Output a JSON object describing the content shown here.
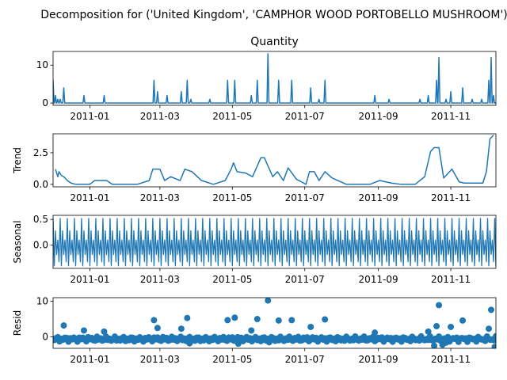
{
  "figure": {
    "suptitle": "Decomposition for ('United Kingdom', 'CAMPHOR WOOD PORTOBELLO MUSHROOM')"
  },
  "chart_data": [
    {
      "type": "line",
      "title": "Quantity",
      "ylabel": "",
      "x_range": [
        "2010-12-01",
        "2011-12-09"
      ],
      "ylim": [
        -0.6,
        13.6
      ],
      "yticks": [
        0,
        10
      ],
      "xtick_labels": [
        "2011-01",
        "2011-03",
        "2011-05",
        "2011-07",
        "2011-09",
        "2011-11"
      ],
      "xticks": [
        "2011-01-01",
        "2011-03-01",
        "2011-05-01",
        "2011-07-01",
        "2011-09-01",
        "2011-11-01"
      ],
      "color": "#1f77b4",
      "baseline": 0,
      "spikes": [
        [
          "2010-12-01",
          6
        ],
        [
          "2010-12-03",
          2
        ],
        [
          "2010-12-05",
          1
        ],
        [
          "2010-12-07",
          1
        ],
        [
          "2010-12-10",
          4
        ],
        [
          "2010-12-27",
          2
        ],
        [
          "2011-01-13",
          2
        ],
        [
          "2011-02-24",
          6
        ],
        [
          "2011-02-27",
          3
        ],
        [
          "2011-03-07",
          2
        ],
        [
          "2011-03-19",
          3
        ],
        [
          "2011-03-24",
          6
        ],
        [
          "2011-03-27",
          1
        ],
        [
          "2011-04-12",
          1
        ],
        [
          "2011-04-27",
          6
        ],
        [
          "2011-05-03",
          6
        ],
        [
          "2011-05-17",
          2
        ],
        [
          "2011-05-22",
          6
        ],
        [
          "2011-05-31",
          13
        ],
        [
          "2011-06-09",
          6
        ],
        [
          "2011-06-20",
          6
        ],
        [
          "2011-07-06",
          4
        ],
        [
          "2011-07-13",
          1
        ],
        [
          "2011-07-18",
          6
        ],
        [
          "2011-08-29",
          2
        ],
        [
          "2011-09-10",
          1
        ],
        [
          "2011-10-06",
          1
        ],
        [
          "2011-10-13",
          2
        ],
        [
          "2011-10-20",
          6
        ],
        [
          "2011-10-22",
          12
        ],
        [
          "2011-10-28",
          1
        ],
        [
          "2011-11-01",
          3
        ],
        [
          "2011-11-11",
          4
        ],
        [
          "2011-11-19",
          1
        ],
        [
          "2011-11-27",
          1
        ],
        [
          "2011-12-03",
          6
        ],
        [
          "2011-12-05",
          12
        ],
        [
          "2011-12-07",
          2
        ]
      ]
    },
    {
      "type": "line",
      "title": "",
      "ylabel": "Trend",
      "x_range": [
        "2010-12-01",
        "2011-12-09"
      ],
      "ylim": [
        -0.2,
        4.0
      ],
      "yticks": [
        0.0,
        2.5
      ],
      "ytick_labels": [
        "0.0",
        "2.5"
      ],
      "xtick_labels": [
        "2011-01",
        "2011-03",
        "2011-05",
        "2011-07",
        "2011-09",
        "2011-11"
      ],
      "xticks": [
        "2011-01-01",
        "2011-03-01",
        "2011-05-01",
        "2011-07-01",
        "2011-09-01",
        "2011-11-01"
      ],
      "color": "#1f77b4",
      "x": [
        "2010-12-03",
        "2010-12-05",
        "2010-12-06",
        "2010-12-08",
        "2010-12-10",
        "2010-12-13",
        "2010-12-16",
        "2010-12-20",
        "2011-01-01",
        "2011-01-05",
        "2011-01-15",
        "2011-01-20",
        "2011-02-10",
        "2011-02-20",
        "2011-02-23",
        "2011-03-01",
        "2011-03-05",
        "2011-03-10",
        "2011-03-18",
        "2011-03-22",
        "2011-03-28",
        "2011-04-05",
        "2011-04-15",
        "2011-04-25",
        "2011-04-30",
        "2011-05-02",
        "2011-05-05",
        "2011-05-12",
        "2011-05-18",
        "2011-05-25",
        "2011-05-28",
        "2011-06-04",
        "2011-06-08",
        "2011-06-13",
        "2011-06-17",
        "2011-06-24",
        "2011-07-02",
        "2011-07-05",
        "2011-07-09",
        "2011-07-13",
        "2011-07-18",
        "2011-07-24",
        "2011-08-05",
        "2011-08-25",
        "2011-09-02",
        "2011-09-12",
        "2011-09-20",
        "2011-10-02",
        "2011-10-10",
        "2011-10-15",
        "2011-10-18",
        "2011-10-22",
        "2011-10-26",
        "2011-10-29",
        "2011-11-02",
        "2011-11-08",
        "2011-11-12",
        "2011-11-20",
        "2011-11-28",
        "2011-12-01",
        "2011-12-04",
        "2011-12-07"
      ],
      "values": [
        1.2,
        0.6,
        1.0,
        0.7,
        0.6,
        0.3,
        0.1,
        0.0,
        0.0,
        0.3,
        0.3,
        0.0,
        0.0,
        0.3,
        1.2,
        1.2,
        0.3,
        0.6,
        0.3,
        1.2,
        1.0,
        0.3,
        0.0,
        0.3,
        1.2,
        1.7,
        1.0,
        0.9,
        0.6,
        2.1,
        2.1,
        0.6,
        1.0,
        0.3,
        1.3,
        0.4,
        0.0,
        1.0,
        1.0,
        0.3,
        1.0,
        0.5,
        0.0,
        0.0,
        0.3,
        0.1,
        0.0,
        0.0,
        0.6,
        2.6,
        2.9,
        2.9,
        0.5,
        0.8,
        1.2,
        0.2,
        0.1,
        0.1,
        0.1,
        1.0,
        3.6,
        3.9
      ]
    },
    {
      "type": "line",
      "title": "",
      "ylabel": "Seasonal",
      "x_range": [
        "2010-12-01",
        "2011-12-09"
      ],
      "ylim": [
        -0.45,
        0.58
      ],
      "yticks": [
        0.0,
        0.5
      ],
      "ytick_labels": [
        "0.0",
        "0.5"
      ],
      "xtick_labels": [
        "2011-01",
        "2011-03",
        "2011-05",
        "2011-07",
        "2011-09",
        "2011-11"
      ],
      "xticks": [
        "2011-01-01",
        "2011-03-01",
        "2011-05-01",
        "2011-07-01",
        "2011-09-01",
        "2011-11-01"
      ],
      "color": "#1f77b4",
      "period_days": 6,
      "cycle_values": [
        0.52,
        -0.4,
        0.28,
        -0.18,
        0.1,
        -0.32
      ]
    },
    {
      "type": "scatter",
      "title": "",
      "ylabel": "Resid",
      "x_range": [
        "2010-12-01",
        "2011-12-09"
      ],
      "ylim": [
        -3.2,
        11.0
      ],
      "yticks": [
        0,
        10
      ],
      "xtick_labels": [
        "2011-01",
        "2011-03",
        "2011-05",
        "2011-07",
        "2011-09",
        "2011-11"
      ],
      "xticks": [
        "2011-01-01",
        "2011-03-01",
        "2011-05-01",
        "2011-07-01",
        "2011-09-01",
        "2011-11-01"
      ],
      "color": "#1f77b4",
      "baseline": 0,
      "outliers": [
        [
          "2010-12-10",
          3.2
        ],
        [
          "2010-12-27",
          1.8
        ],
        [
          "2011-01-13",
          1.5
        ],
        [
          "2011-02-24",
          4.7
        ],
        [
          "2011-02-27",
          2.5
        ],
        [
          "2011-03-19",
          2.3
        ],
        [
          "2011-03-24",
          5.3
        ],
        [
          "2011-04-27",
          4.7
        ],
        [
          "2011-05-03",
          5.4
        ],
        [
          "2011-05-17",
          1.8
        ],
        [
          "2011-05-22",
          5.0
        ],
        [
          "2011-05-31",
          10.2
        ],
        [
          "2011-06-09",
          4.6
        ],
        [
          "2011-06-20",
          4.7
        ],
        [
          "2011-07-06",
          2.8
        ],
        [
          "2011-07-18",
          4.9
        ],
        [
          "2011-08-29",
          1.2
        ],
        [
          "2011-10-13",
          1.5
        ],
        [
          "2011-10-20",
          3.0
        ],
        [
          "2011-10-22",
          8.9
        ],
        [
          "2011-11-01",
          2.8
        ],
        [
          "2011-11-11",
          4.6
        ],
        [
          "2011-12-05",
          7.6
        ],
        [
          "2011-12-03",
          2.3
        ],
        [
          "2011-03-26",
          -1.8
        ],
        [
          "2011-05-06",
          -1.9
        ],
        [
          "2011-10-18",
          -2.5
        ],
        [
          "2011-10-25",
          -2.2
        ],
        [
          "2011-12-08",
          -2.8
        ],
        [
          "2011-06-01",
          -1.5
        ],
        [
          "2011-10-28",
          -1.6
        ]
      ]
    }
  ]
}
